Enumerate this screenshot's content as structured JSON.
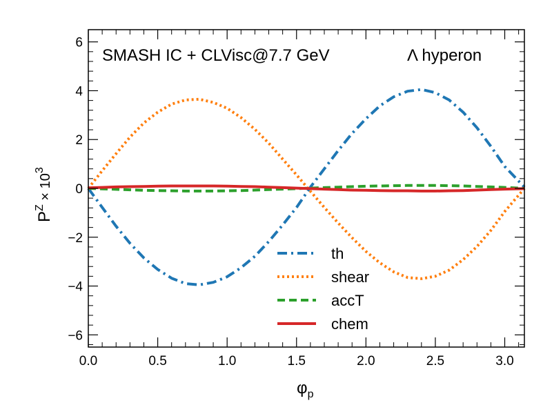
{
  "chart_data": {
    "type": "line",
    "annotation_left": "SMASH IC + CLVisc@7.7 GeV",
    "annotation_right": "Λ hyperon",
    "xlabel": "φ",
    "xlabel_sub": "p",
    "ylabel_base": "P",
    "ylabel_sup": "Z",
    "ylabel_mult": " × 10",
    "ylabel_exp": "3",
    "xlim": [
      0,
      3.1416
    ],
    "ylim": [
      -6.5,
      6.5
    ],
    "x_ticks": [
      0.0,
      0.5,
      1.0,
      1.5,
      2.0,
      2.5,
      3.0
    ],
    "x_tick_labels": [
      "0.0",
      "0.5",
      "1.0",
      "1.5",
      "2.0",
      "2.5",
      "3.0"
    ],
    "y_ticks": [
      -6,
      -4,
      -2,
      0,
      2,
      4,
      6
    ],
    "y_tick_labels": [
      "−6",
      "−4",
      "−2",
      "0",
      "2",
      "4",
      "6"
    ],
    "x": [
      0.0,
      0.1,
      0.2,
      0.3,
      0.4,
      0.5,
      0.6,
      0.7,
      0.8,
      0.9,
      1.0,
      1.1,
      1.2,
      1.3,
      1.4,
      1.5,
      1.6,
      1.7,
      1.8,
      1.9,
      2.0,
      2.1,
      2.2,
      2.3,
      2.4,
      2.5,
      2.6,
      2.7,
      2.8,
      2.9,
      3.0,
      3.1416
    ],
    "series": [
      {
        "name": "th",
        "color": "#1f77b4",
        "style": "dashdot",
        "values": [
          0.0,
          -0.78,
          -1.55,
          -2.25,
          -2.85,
          -3.32,
          -3.68,
          -3.9,
          -3.95,
          -3.85,
          -3.62,
          -3.25,
          -2.78,
          -2.18,
          -1.5,
          -0.78,
          0.05,
          0.8,
          1.55,
          2.25,
          2.85,
          3.38,
          3.75,
          3.98,
          4.05,
          3.92,
          3.62,
          3.12,
          2.48,
          1.72,
          0.9,
          0.05
        ]
      },
      {
        "name": "shear",
        "color": "#ff7f0e",
        "style": "dotted",
        "values": [
          0.0,
          0.72,
          1.42,
          2.1,
          2.68,
          3.12,
          3.45,
          3.62,
          3.65,
          3.52,
          3.28,
          2.9,
          2.42,
          1.85,
          1.2,
          0.55,
          -0.12,
          -0.78,
          -1.42,
          -2.02,
          -2.58,
          -3.05,
          -3.42,
          -3.65,
          -3.7,
          -3.6,
          -3.35,
          -2.92,
          -2.38,
          -1.72,
          -0.95,
          0.0
        ]
      },
      {
        "name": "accT",
        "color": "#2ca02c",
        "style": "dashed",
        "values": [
          0.0,
          -0.02,
          -0.04,
          -0.06,
          -0.08,
          -0.09,
          -0.1,
          -0.11,
          -0.11,
          -0.11,
          -0.1,
          -0.09,
          -0.07,
          -0.05,
          -0.03,
          -0.01,
          0.01,
          0.03,
          0.05,
          0.07,
          0.09,
          0.1,
          0.11,
          0.12,
          0.12,
          0.12,
          0.11,
          0.1,
          0.08,
          0.06,
          0.04,
          0.0
        ]
      },
      {
        "name": "chem",
        "color": "#d62728",
        "style": "solid",
        "values": [
          0.02,
          0.04,
          0.06,
          0.07,
          0.08,
          0.09,
          0.1,
          0.1,
          0.1,
          0.1,
          0.09,
          0.08,
          0.07,
          0.05,
          0.03,
          0.01,
          -0.01,
          -0.03,
          -0.05,
          -0.07,
          -0.08,
          -0.09,
          -0.1,
          -0.1,
          -0.11,
          -0.11,
          -0.1,
          -0.09,
          -0.07,
          -0.05,
          -0.03,
          -0.01
        ]
      }
    ],
    "legend_position": "lower-center"
  }
}
